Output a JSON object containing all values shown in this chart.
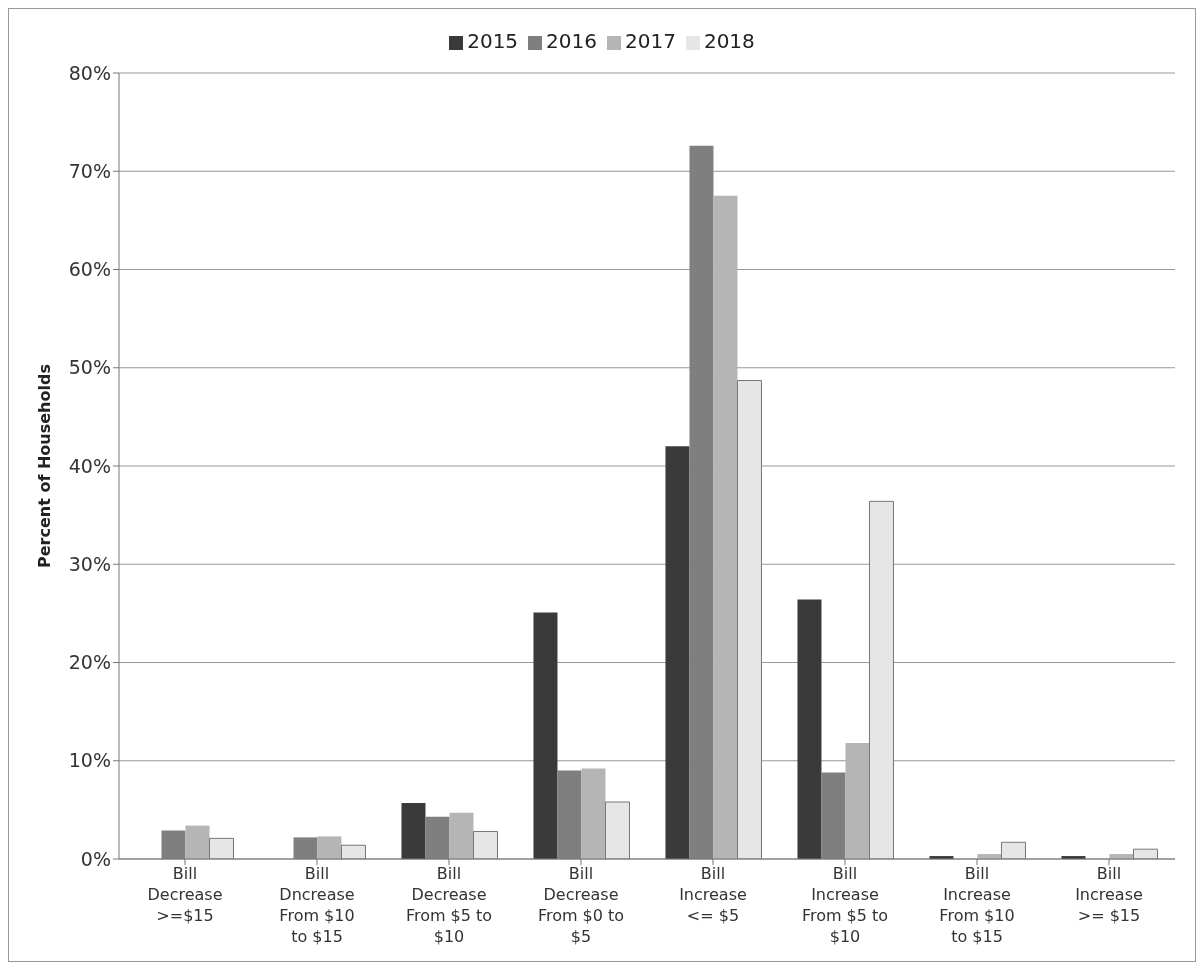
{
  "chart_data": {
    "type": "bar",
    "ylabel": "Percent of Households",
    "categories": [
      "Bill Decrease >=$15",
      "Bill Dncrease From $10 to $15",
      "Bill Decrease From $5 to $10",
      "Bill Decrease From $0 to $5",
      "Bill Increase <= $5",
      "Bill Increase From $5 to $10",
      "Bill Increase From $10 to $15",
      "Bill Increase >= $15"
    ],
    "series": [
      {
        "name": "2015",
        "color": "#3a3a3a",
        "values": [
          0,
          0,
          5.7,
          25.1,
          42,
          26.4,
          0.3,
          0.3
        ]
      },
      {
        "name": "2016",
        "color": "#7f7f7f",
        "values": [
          2.9,
          2.2,
          4.3,
          9,
          72.6,
          8.8,
          0,
          0
        ]
      },
      {
        "name": "2017",
        "color": "#b5b5b5",
        "values": [
          3.4,
          2.3,
          4.7,
          9.2,
          67.5,
          11.8,
          0.5,
          0.5
        ]
      },
      {
        "name": "2018",
        "color": "#e6e6e6",
        "values": [
          2.1,
          1.4,
          2.8,
          5.8,
          48.7,
          36.4,
          1.7,
          1.0
        ]
      }
    ],
    "ylim": [
      0,
      80
    ],
    "yticks": [
      {
        "value": 0,
        "label": "0%"
      },
      {
        "value": 10,
        "label": "10%"
      },
      {
        "value": 20,
        "label": "20%"
      },
      {
        "value": 30,
        "label": "30%"
      },
      {
        "value": 40,
        "label": "40%"
      },
      {
        "value": 50,
        "label": "50%"
      },
      {
        "value": 60,
        "label": "60%"
      },
      {
        "value": 70,
        "label": "70%"
      },
      {
        "value": 80,
        "label": "80%"
      }
    ],
    "grid": "y",
    "legend": "top"
  }
}
